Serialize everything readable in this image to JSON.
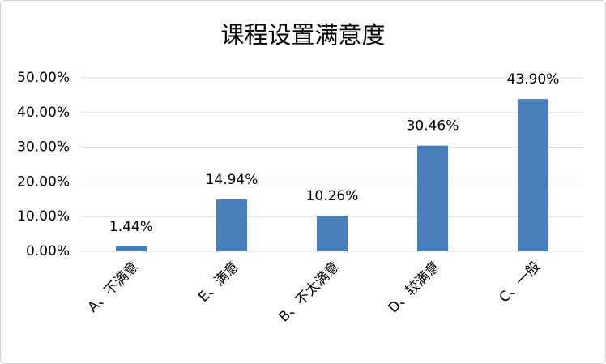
{
  "chart_data": {
    "type": "bar",
    "title": "课程设置满意度",
    "categories": [
      "A、不满意",
      "E、满意",
      "B、不太满意",
      "D、较满意",
      "C、一般"
    ],
    "values": [
      1.44,
      14.94,
      10.26,
      30.46,
      43.9
    ],
    "value_labels": [
      "1.44%",
      "14.94%",
      "10.26%",
      "30.46%",
      "43.90%"
    ],
    "color": "#4a7ebb",
    "ylim": [
      0,
      50
    ],
    "yticks": [
      {
        "value": 0,
        "label": "0.00%"
      },
      {
        "value": 10,
        "label": "10.00%"
      },
      {
        "value": 20,
        "label": "20.00%"
      },
      {
        "value": 30,
        "label": "30.00%"
      },
      {
        "value": 40,
        "label": "40.00%"
      },
      {
        "value": 50,
        "label": "50.00%"
      }
    ],
    "grid": true
  }
}
